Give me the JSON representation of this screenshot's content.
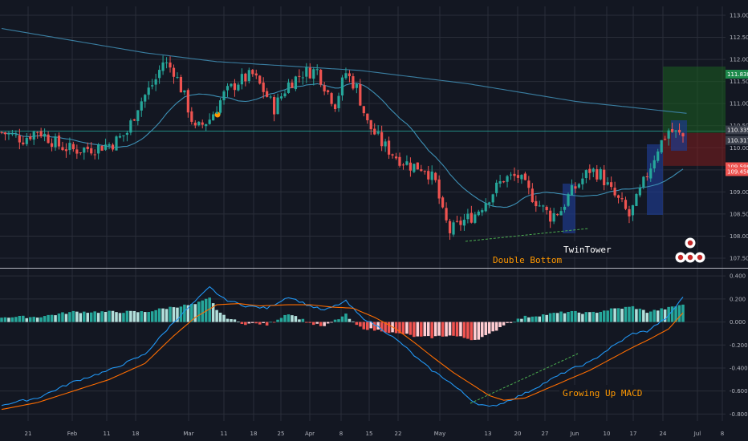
{
  "colors": {
    "background": "#131722",
    "grid": "#2a2e39",
    "up": "#26a69a",
    "down": "#ef5350",
    "ma_long": "#3a7ea1",
    "ma_short": "#3d8fb4",
    "macd_line": "#2196f3",
    "signal_line": "#ff6d00",
    "hist_up_strong": "#26a69a",
    "hist_up_weak": "#b2dfdb",
    "hist_down_strong": "#ef5350",
    "hist_down_weak": "#ffcdd2",
    "annotation_bg": "#131722",
    "annotation_text": "#ff9800",
    "twintower_text": "#ffffff",
    "target_zone": "#1b5e20",
    "stop_zone": "#7f1d1d",
    "target_badge": "#1e8a4c",
    "stop_badge": "#ef5350",
    "current_badge": "#3a3f4b"
  },
  "chart_data": [
    {
      "type": "candlestick",
      "ylim": [
        107.3,
        113.2
      ],
      "price_ticks": [
        "113.000",
        "112.500",
        "112.000",
        "111.500",
        "111.000",
        "110.500",
        "110.000",
        "109.500",
        "109.000",
        "108.500",
        "108.000",
        "107.500"
      ],
      "x_ticks": [
        "21",
        "Feb",
        "11",
        "18",
        "Mar",
        "11",
        "18",
        "25",
        "Apr",
        "8",
        "15",
        "22",
        "May",
        "13",
        "20",
        "27",
        "Jun",
        "10",
        "17",
        "24",
        "Jul",
        "8"
      ],
      "price_labels": [
        {
          "value": 111.838,
          "text": "111.838",
          "kind": "target"
        },
        {
          "value": 110.335,
          "text": "110.335",
          "kind": "current"
        },
        {
          "value": 110.317,
          "text": "110.317",
          "kind": "current"
        },
        {
          "value": 109.59,
          "text": "109.590",
          "kind": "stop"
        },
        {
          "value": 109.45,
          "text": "109.450",
          "kind": "stop"
        }
      ],
      "annotations": [
        "Double Bottom",
        "TwinTower"
      ]
    },
    {
      "type": "macd",
      "ylim": [
        -0.86,
        0.45
      ],
      "ticks": [
        "0.400",
        "0.200",
        "0.000",
        "-0.200",
        "-0.400",
        "-0.600",
        "-0.800"
      ],
      "annotations": [
        "Growing Up MACD"
      ]
    }
  ]
}
